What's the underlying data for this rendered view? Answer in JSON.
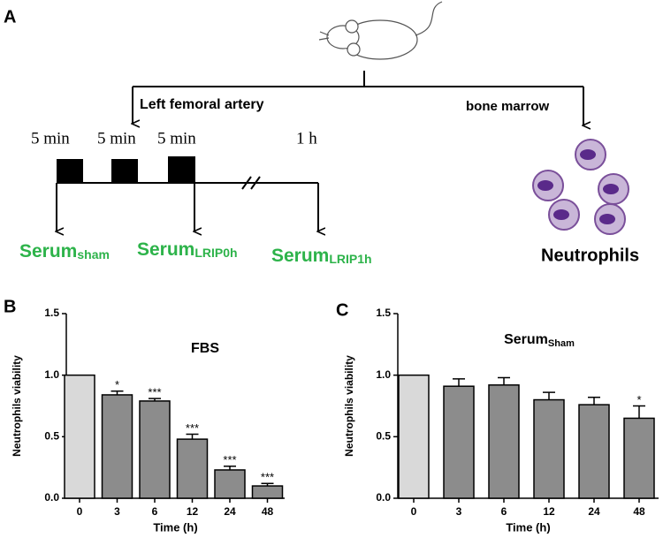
{
  "diagram": {
    "panel_a": "A",
    "branch_left": "Left femoral artery",
    "branch_right": "bone marrow",
    "durations": [
      "5 min",
      "5 min",
      "5 min",
      "1 h"
    ],
    "samples": [
      {
        "text": "Serum",
        "sub": "sham"
      },
      {
        "text": "Serum",
        "sub": "LRIP0h"
      },
      {
        "text": "Serum",
        "sub": "LRIP1h"
      }
    ],
    "cells_label": "Neutrophils"
  },
  "chart_data": [
    {
      "type": "bar",
      "panel": "B",
      "title": "FBS",
      "categories": [
        "0",
        "3",
        "6",
        "12",
        "24",
        "48"
      ],
      "values": [
        1.0,
        0.84,
        0.79,
        0.48,
        0.23,
        0.1
      ],
      "errors": [
        0,
        0.03,
        0.02,
        0.04,
        0.03,
        0.02
      ],
      "annotations": [
        null,
        "*",
        "***",
        "***",
        "***",
        "***"
      ],
      "colors": [
        "#d9d9d9",
        "#8c8c8c",
        "#8c8c8c",
        "#8c8c8c",
        "#8c8c8c",
        "#8c8c8c"
      ],
      "x_label": "Time (h)",
      "y_label": "Neutrophils viability",
      "ylim": [
        0,
        1.5
      ],
      "yticks": [
        {
          "value": 0,
          "label": "0.0"
        },
        {
          "value": 0.5,
          "label": "0.5"
        },
        {
          "value": 1,
          "label": "1.0"
        },
        {
          "value": 1.5,
          "label": "1.5"
        }
      ]
    },
    {
      "type": "bar",
      "panel": "C",
      "title": "Serum",
      "title_sub": "Sham",
      "categories": [
        "0",
        "3",
        "6",
        "12",
        "24",
        "48"
      ],
      "values": [
        1.0,
        0.91,
        0.92,
        0.8,
        0.76,
        0.65
      ],
      "errors": [
        0,
        0.06,
        0.06,
        0.06,
        0.06,
        0.1
      ],
      "annotations": [
        null,
        null,
        null,
        null,
        null,
        "*"
      ],
      "colors": [
        "#d9d9d9",
        "#8c8c8c",
        "#8c8c8c",
        "#8c8c8c",
        "#8c8c8c",
        "#8c8c8c"
      ],
      "x_label": "Time (h)",
      "y_label": "Neutrophils viability",
      "ylim": [
        0,
        1.5
      ],
      "yticks": [
        {
          "value": 0,
          "label": "0.0"
        },
        {
          "value": 0.5,
          "label": "0.5"
        },
        {
          "value": 1,
          "label": "1.0"
        },
        {
          "value": 1.5,
          "label": "1.5"
        }
      ]
    }
  ]
}
